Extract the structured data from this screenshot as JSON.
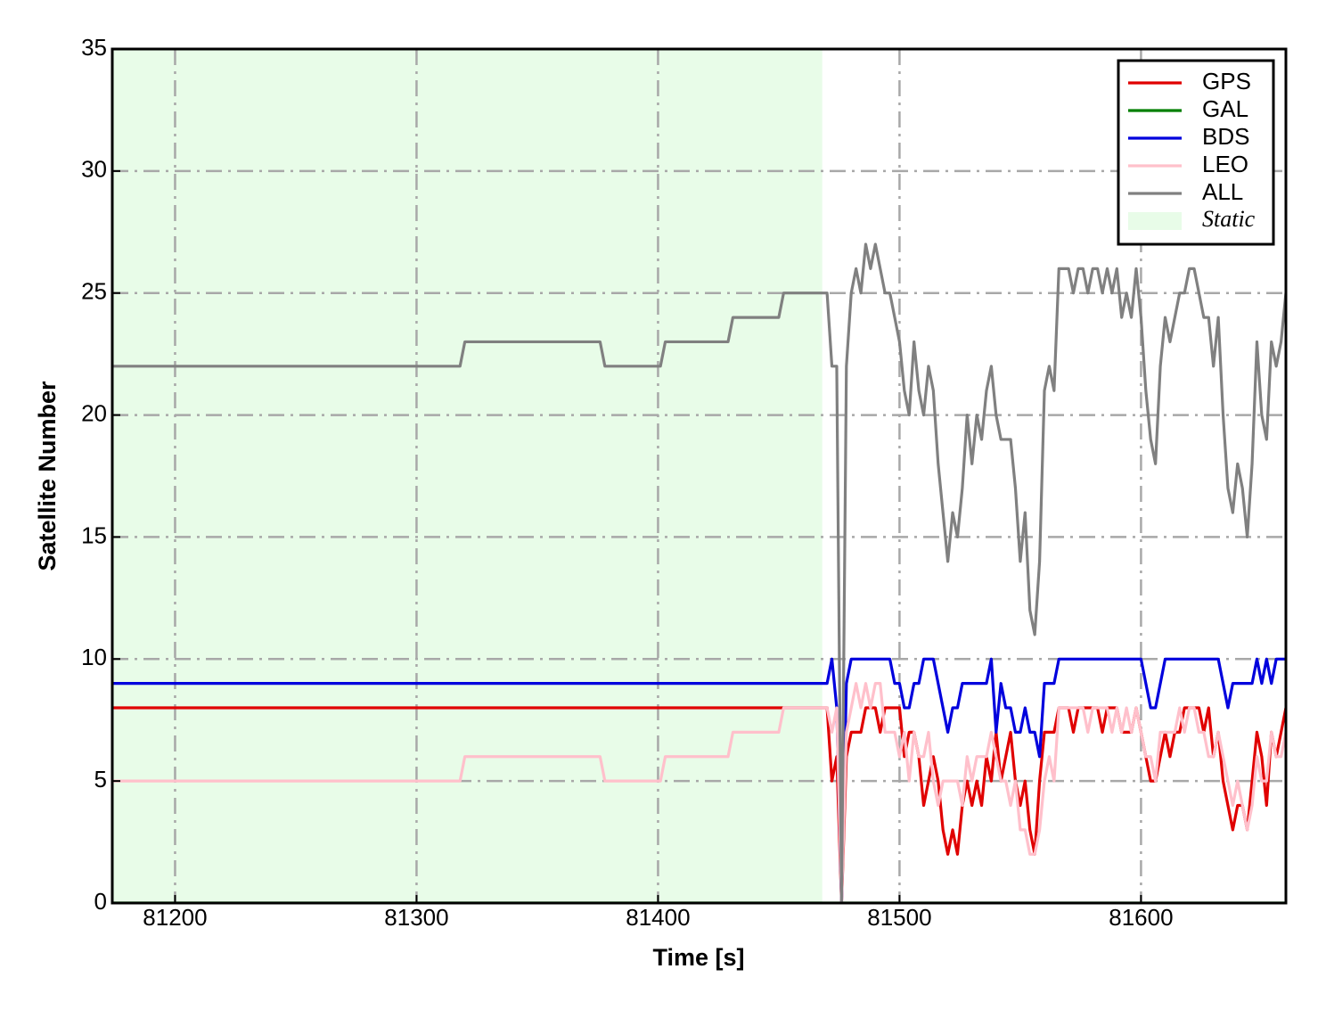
{
  "chart_data": {
    "type": "line",
    "xlabel": "Time [s]",
    "ylabel": "Satellite Number",
    "xlim": [
      81174,
      81660
    ],
    "ylim": [
      0,
      35
    ],
    "xticks": [
      81200,
      81300,
      81400,
      81500,
      81600
    ],
    "yticks": [
      0,
      5,
      10,
      15,
      20,
      25,
      30,
      35
    ],
    "grid": true,
    "legend": "upper right",
    "spans": [
      {
        "name": "Static",
        "start": 81174,
        "end": 81468,
        "color": "#e8fce8"
      }
    ],
    "x": [
      81174,
      81318,
      81320,
      81376,
      81378,
      81401,
      81403,
      81429,
      81431,
      81450,
      81452,
      81468,
      81470,
      81472,
      81474,
      81476,
      81478,
      81480,
      81482,
      81484,
      81486,
      81488,
      81490,
      81492,
      81494,
      81496,
      81498,
      81500,
      81502,
      81504,
      81506,
      81508,
      81510,
      81512,
      81514,
      81516,
      81518,
      81520,
      81522,
      81524,
      81526,
      81528,
      81530,
      81532,
      81534,
      81536,
      81538,
      81540,
      81542,
      81544,
      81546,
      81548,
      81550,
      81552,
      81554,
      81556,
      81558,
      81560,
      81562,
      81564,
      81566,
      81568,
      81570,
      81572,
      81574,
      81576,
      81578,
      81580,
      81582,
      81584,
      81586,
      81588,
      81590,
      81592,
      81594,
      81596,
      81598,
      81600,
      81602,
      81604,
      81606,
      81608,
      81610,
      81612,
      81614,
      81616,
      81618,
      81620,
      81622,
      81624,
      81626,
      81628,
      81630,
      81632,
      81634,
      81636,
      81638,
      81640,
      81642,
      81644,
      81646,
      81648,
      81650,
      81652,
      81654,
      81656,
      81658,
      81660
    ],
    "series": [
      {
        "name": "GPS",
        "color": "#e00000",
        "values": [
          8,
          8,
          8,
          8,
          8,
          8,
          8,
          8,
          8,
          8,
          8,
          8,
          8,
          5,
          6,
          0,
          6,
          7,
          7,
          7,
          8,
          8,
          8,
          7,
          8,
          8,
          8,
          8,
          6,
          7,
          7,
          6,
          4,
          5,
          6,
          5,
          3,
          2,
          3,
          2,
          4,
          5,
          4,
          5,
          4,
          6,
          5,
          7,
          5,
          6,
          7,
          5,
          4,
          5,
          3,
          2,
          5,
          7,
          7,
          7,
          8,
          8,
          8,
          7,
          8,
          8,
          8,
          8,
          8,
          7,
          8,
          8,
          8,
          7,
          7,
          7,
          8,
          7,
          6,
          5,
          5,
          6,
          7,
          6,
          7,
          7,
          8,
          8,
          8,
          8,
          7,
          8,
          6,
          7,
          5,
          4,
          3,
          4,
          4,
          3,
          5,
          7,
          6,
          4,
          7,
          6,
          7,
          8
        ]
      },
      {
        "name": "GAL",
        "color": "#007f00",
        "values": [
          0,
          0,
          0,
          0,
          0,
          0,
          0,
          0,
          0,
          0,
          0,
          0,
          0,
          0,
          0,
          0,
          0,
          0,
          0,
          0,
          0,
          0,
          0,
          0,
          0,
          0,
          0,
          0,
          0,
          0,
          0,
          0,
          0,
          0,
          0,
          0,
          0,
          0,
          0,
          0,
          0,
          0,
          0,
          0,
          0,
          0,
          0,
          0,
          0,
          0,
          0,
          0,
          0,
          0,
          0,
          0,
          0,
          0,
          0,
          0,
          0,
          0,
          0,
          0,
          0,
          0,
          0,
          0,
          0,
          0,
          0,
          0,
          0,
          0,
          0,
          0,
          0,
          0,
          0,
          0,
          0,
          0,
          0,
          0,
          0,
          0,
          0,
          0,
          0,
          0,
          0,
          0,
          0,
          0,
          0,
          0,
          0,
          0,
          0,
          0,
          0,
          0,
          0,
          0,
          0,
          0,
          0,
          0
        ]
      },
      {
        "name": "BDS",
        "color": "#0000dd",
        "values": [
          9,
          9,
          9,
          9,
          9,
          9,
          9,
          9,
          9,
          9,
          9,
          9,
          9,
          10,
          8,
          0,
          9,
          10,
          10,
          10,
          10,
          10,
          10,
          10,
          10,
          10,
          9,
          9,
          8,
          8,
          9,
          9,
          10,
          10,
          10,
          9,
          8,
          7,
          8,
          8,
          9,
          9,
          9,
          9,
          9,
          9,
          10,
          7,
          9,
          8,
          8,
          7,
          7,
          8,
          7,
          7,
          6,
          9,
          9,
          9,
          10,
          10,
          10,
          10,
          10,
          10,
          10,
          10,
          10,
          10,
          10,
          10,
          10,
          10,
          10,
          10,
          10,
          10,
          9,
          8,
          8,
          9,
          10,
          10,
          10,
          10,
          10,
          10,
          10,
          10,
          10,
          10,
          10,
          10,
          9,
          8,
          9,
          9,
          9,
          9,
          9,
          10,
          9,
          10,
          9,
          10,
          10,
          10
        ]
      },
      {
        "name": "LEO",
        "color": "#ffc0cb",
        "values": [
          5,
          5,
          6,
          6,
          5,
          5,
          6,
          6,
          7,
          7,
          8,
          8,
          8,
          7,
          8,
          0,
          7,
          8,
          9,
          8,
          9,
          8,
          9,
          9,
          7,
          7,
          7,
          6,
          7,
          5,
          7,
          6,
          6,
          7,
          5,
          4,
          5,
          5,
          5,
          5,
          4,
          6,
          5,
          6,
          6,
          6,
          7,
          6,
          5,
          5,
          4,
          5,
          3,
          3,
          2,
          2,
          3,
          5,
          6,
          5,
          8,
          8,
          8,
          8,
          8,
          8,
          7,
          8,
          8,
          8,
          8,
          7,
          8,
          7,
          8,
          7,
          8,
          7,
          6,
          6,
          5,
          7,
          7,
          7,
          7,
          8,
          7,
          8,
          8,
          7,
          7,
          6,
          6,
          7,
          6,
          5,
          4,
          5,
          4,
          3,
          4,
          6,
          5,
          5,
          7,
          6,
          6,
          7
        ]
      },
      {
        "name": "ALL",
        "color": "#808080",
        "values": [
          22,
          22,
          23,
          23,
          22,
          22,
          23,
          23,
          24,
          24,
          25,
          25,
          25,
          22,
          22,
          0,
          22,
          25,
          26,
          25,
          27,
          26,
          27,
          26,
          25,
          25,
          24,
          23,
          21,
          20,
          23,
          21,
          20,
          22,
          21,
          18,
          16,
          14,
          16,
          15,
          17,
          20,
          18,
          20,
          19,
          21,
          22,
          20,
          19,
          19,
          19,
          17,
          14,
          16,
          12,
          11,
          14,
          21,
          22,
          21,
          26,
          26,
          26,
          25,
          26,
          26,
          25,
          26,
          26,
          25,
          26,
          25,
          26,
          24,
          25,
          24,
          26,
          24,
          21,
          19,
          18,
          22,
          24,
          23,
          24,
          25,
          25,
          26,
          26,
          25,
          24,
          24,
          22,
          24,
          20,
          17,
          16,
          18,
          17,
          15,
          18,
          23,
          20,
          19,
          23,
          22,
          23,
          25
        ]
      }
    ]
  }
}
